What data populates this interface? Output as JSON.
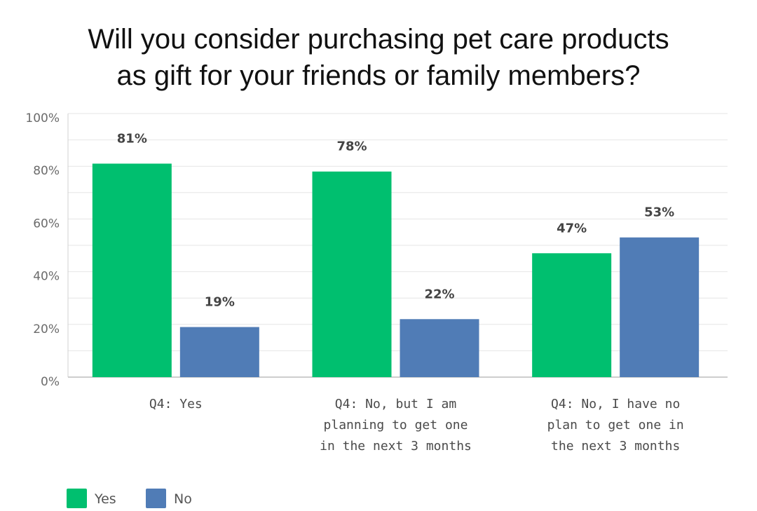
{
  "chart_data": {
    "type": "bar",
    "title": [
      "Will you consider purchasing pet care products",
      "as gift for your friends or family members?"
    ],
    "categories": [
      [
        "Q4: Yes"
      ],
      [
        "Q4: No, but I am",
        "planning to get one",
        "in the next 3 months"
      ],
      [
        "Q4: No, I have no",
        "plan to get one in",
        "the next 3 months"
      ]
    ],
    "series": [
      {
        "name": "Yes",
        "color": "#00bf6f",
        "values": [
          81,
          78,
          47
        ],
        "labels": [
          "81%",
          "78%",
          "47%"
        ]
      },
      {
        "name": "No",
        "color": "#507cb6",
        "values": [
          19,
          22,
          53
        ],
        "labels": [
          "19%",
          "22%",
          "53%"
        ]
      }
    ],
    "ylim": [
      0,
      100
    ],
    "yticks": [
      0,
      20,
      40,
      60,
      80,
      100
    ],
    "ytick_labels": [
      "0%",
      "20%",
      "40%",
      "60%",
      "80%",
      "100%"
    ],
    "grid": true,
    "legend_position": "bottom-left"
  }
}
